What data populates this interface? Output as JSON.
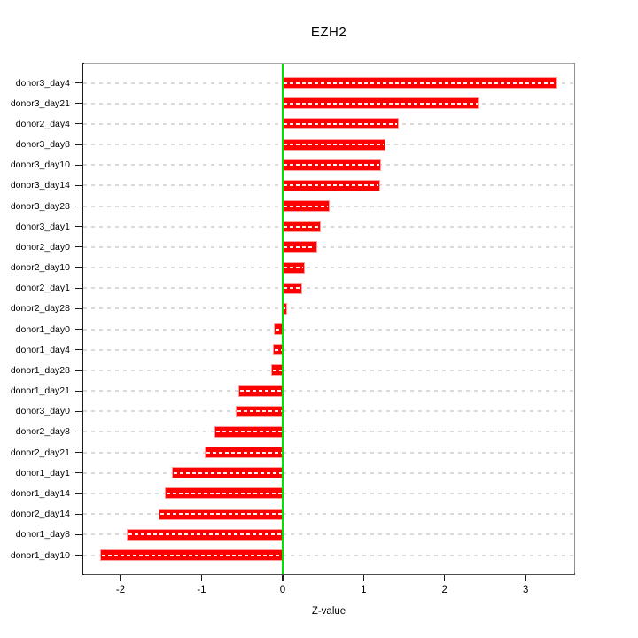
{
  "chart_data": {
    "type": "bar",
    "orientation": "horizontal",
    "title": "EZH2",
    "xlabel": "Z-value",
    "ylabel": "",
    "legend": "none",
    "grid": "dashed-horizontal-per-category",
    "categories": [
      "donor3_day4",
      "donor3_day21",
      "donor2_day4",
      "donor3_day8",
      "donor3_day10",
      "donor3_day14",
      "donor3_day28",
      "donor3_day1",
      "donor2_day0",
      "donor2_day10",
      "donor2_day1",
      "donor2_day28",
      "donor1_day0",
      "donor1_day4",
      "donor1_day28",
      "donor1_day21",
      "donor3_day0",
      "donor2_day8",
      "donor2_day21",
      "donor1_day1",
      "donor1_day14",
      "donor2_day14",
      "donor1_day8",
      "donor1_day10"
    ],
    "values": [
      3.38,
      2.42,
      1.42,
      1.26,
      1.2,
      1.19,
      0.57,
      0.46,
      0.42,
      0.26,
      0.23,
      0.05,
      -0.1,
      -0.11,
      -0.13,
      -0.53,
      -0.57,
      -0.83,
      -0.95,
      -1.36,
      -1.44,
      -1.52,
      -1.91,
      -2.24
    ],
    "x_ticks": [
      -2,
      -1,
      0,
      1,
      2,
      3
    ],
    "xlim": [
      -2.46,
      3.6
    ],
    "colors": {
      "bar_fill": "#ff0000",
      "bar_edge": "#ff7d7d",
      "zero_line": "#00e400",
      "gridline": "#dadada",
      "gridline_on_bar": "#ffffff",
      "axis_text": "#000000"
    }
  }
}
